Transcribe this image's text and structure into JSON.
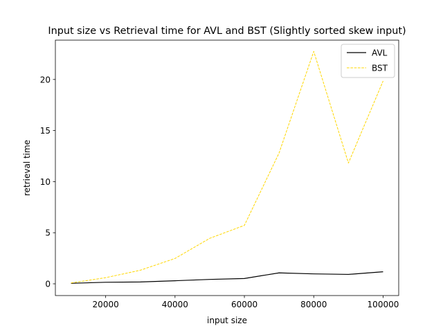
{
  "chart_data": {
    "type": "line",
    "title": "Input size vs Retrieval time for AVL and BST (Slightly sorted skew input)",
    "xlabel": "input size",
    "ylabel": "retrieval time",
    "xlim": [
      5500,
      104500
    ],
    "ylim": [
      -1.15,
      23.85
    ],
    "xticks": [
      20000,
      40000,
      60000,
      80000,
      100000
    ],
    "yticks": [
      0,
      5,
      10,
      15,
      20
    ],
    "x": [
      10000,
      20000,
      30000,
      40000,
      50000,
      60000,
      70000,
      80000,
      90000,
      100000
    ],
    "series": [
      {
        "name": "AVL",
        "color": "#000000",
        "dash": "solid",
        "values": [
          0.05,
          0.15,
          0.18,
          0.3,
          0.43,
          0.52,
          1.07,
          0.97,
          0.92,
          1.18
        ]
      },
      {
        "name": "BST",
        "color": "#ffd700",
        "dash": "dashed",
        "values": [
          0.08,
          0.6,
          1.33,
          2.48,
          4.45,
          5.72,
          12.8,
          22.75,
          11.82,
          19.85
        ]
      }
    ],
    "legend_position": "top-right",
    "grid": false
  }
}
